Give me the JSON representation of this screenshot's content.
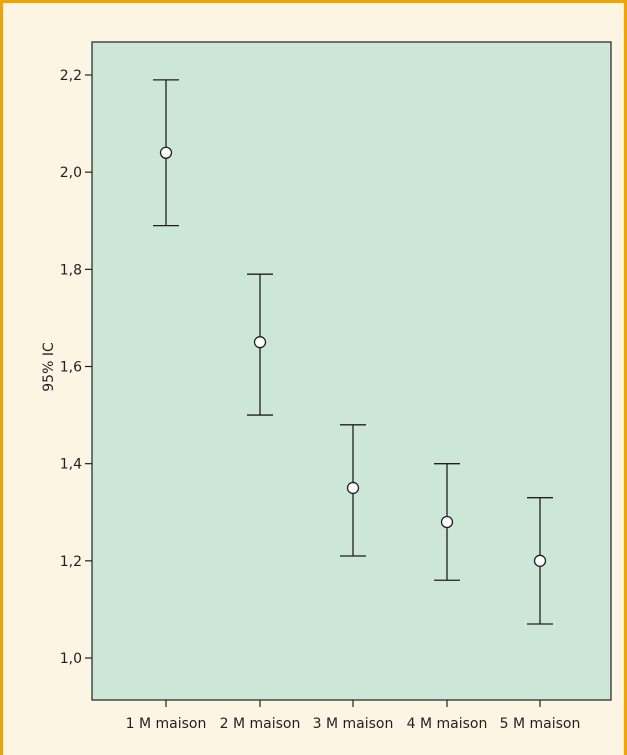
{
  "chart_data": {
    "type": "errorbar",
    "title": "",
    "xlabel": "",
    "ylabel": "95% IC",
    "ylim": [
      0.9,
      2.3
    ],
    "yticks": [
      1.0,
      1.2,
      1.4,
      1.6,
      1.8,
      2.0,
      2.2
    ],
    "ytick_labels": [
      "1,0",
      "1,2",
      "1,4",
      "1,6",
      "1,8",
      "2,0",
      "2,2"
    ],
    "grid": false,
    "categories": [
      "1 M maison",
      "2 M maison",
      "3 M maison",
      "4 M maison",
      "5 M maison"
    ],
    "mean": [
      2.04,
      1.65,
      1.35,
      1.28,
      1.2
    ],
    "lower": [
      1.89,
      1.5,
      1.21,
      1.16,
      1.07
    ],
    "upper": [
      2.19,
      1.79,
      1.48,
      1.4,
      1.33
    ]
  },
  "colors": {
    "frame_background": "#fdf5e4",
    "frame_border": "#f2a300",
    "plot_background": "#cce6d8",
    "ink": "#231f20",
    "marker_fill": "#ffffff"
  }
}
